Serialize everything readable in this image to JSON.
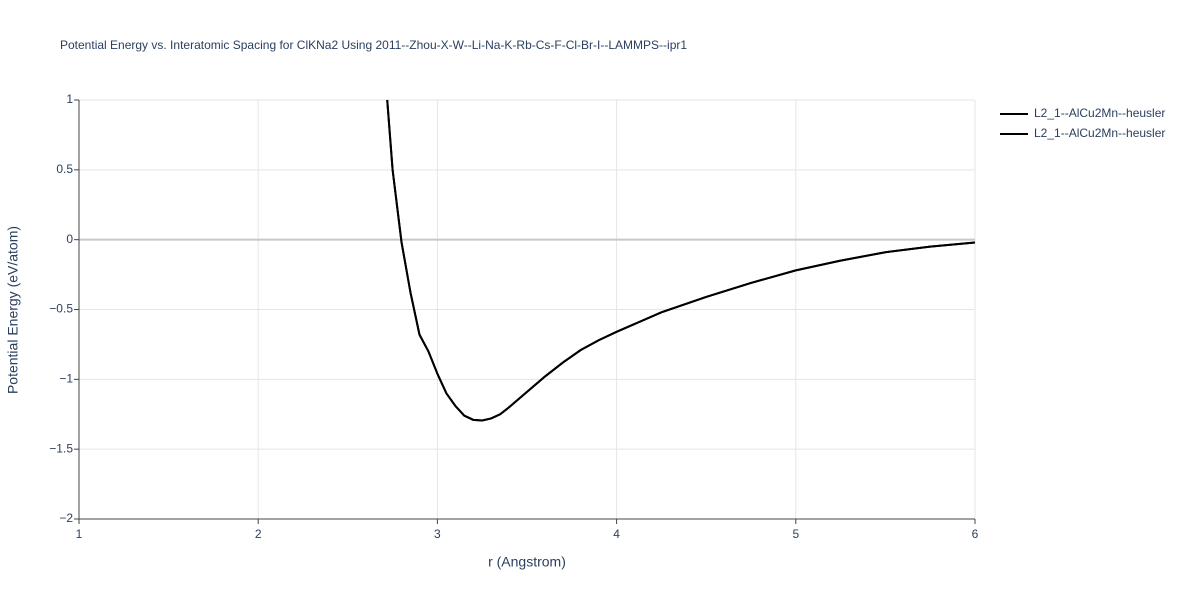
{
  "chart_data": {
    "type": "line",
    "title": "Potential Energy vs. Interatomic Spacing for ClKNa2 Using 2011--Zhou-X-W--Li-Na-K-Rb-Cs-F-Cl-Br-I--LAMMPS--ipr1",
    "x_label": "r (Angstrom)",
    "y_label": "Potential Energy (eV/atom)",
    "x": [
      2.72,
      2.75,
      2.8,
      2.85,
      2.9,
      2.95,
      3.0,
      3.05,
      3.1,
      3.15,
      3.2,
      3.25,
      3.3,
      3.35,
      3.4,
      3.5,
      3.6,
      3.7,
      3.8,
      3.9,
      4.0,
      4.25,
      4.5,
      4.75,
      5.0,
      5.25,
      5.5,
      5.75,
      6.0
    ],
    "series": [
      {
        "name": "L2_1--AlCu2Mn--heusler",
        "color": "#000000",
        "values": [
          1.0,
          0.5,
          -0.02,
          -0.38,
          -0.68,
          -0.8,
          -0.96,
          -1.1,
          -1.19,
          -1.26,
          -1.29,
          -1.295,
          -1.28,
          -1.25,
          -1.2,
          -1.09,
          -0.98,
          -0.88,
          -0.79,
          -0.72,
          -0.66,
          -0.52,
          -0.41,
          -0.31,
          -0.22,
          -0.15,
          -0.09,
          -0.05,
          -0.02
        ]
      },
      {
        "name": "L2_1--AlCu2Mn--heusler",
        "color": "#000000",
        "values": [
          1.0,
          0.5,
          -0.02,
          -0.38,
          -0.68,
          -0.8,
          -0.96,
          -1.1,
          -1.19,
          -1.26,
          -1.29,
          -1.295,
          -1.28,
          -1.25,
          -1.2,
          -1.09,
          -0.98,
          -0.88,
          -0.79,
          -0.72,
          -0.66,
          -0.52,
          -0.41,
          -0.31,
          -0.22,
          -0.15,
          -0.09,
          -0.05,
          -0.02
        ]
      }
    ],
    "xlim": [
      1,
      6
    ],
    "xticks": [
      1,
      2,
      3,
      4,
      5,
      6
    ],
    "ylim": [
      -2,
      1
    ],
    "yticks": [
      {
        "value": -2,
        "label": "−2"
      },
      {
        "value": -1.5,
        "label": "−1.5"
      },
      {
        "value": -1,
        "label": "−1"
      },
      {
        "value": -0.5,
        "label": "−0.5"
      },
      0,
      0.5,
      1
    ],
    "grid": true,
    "legend": "right"
  }
}
